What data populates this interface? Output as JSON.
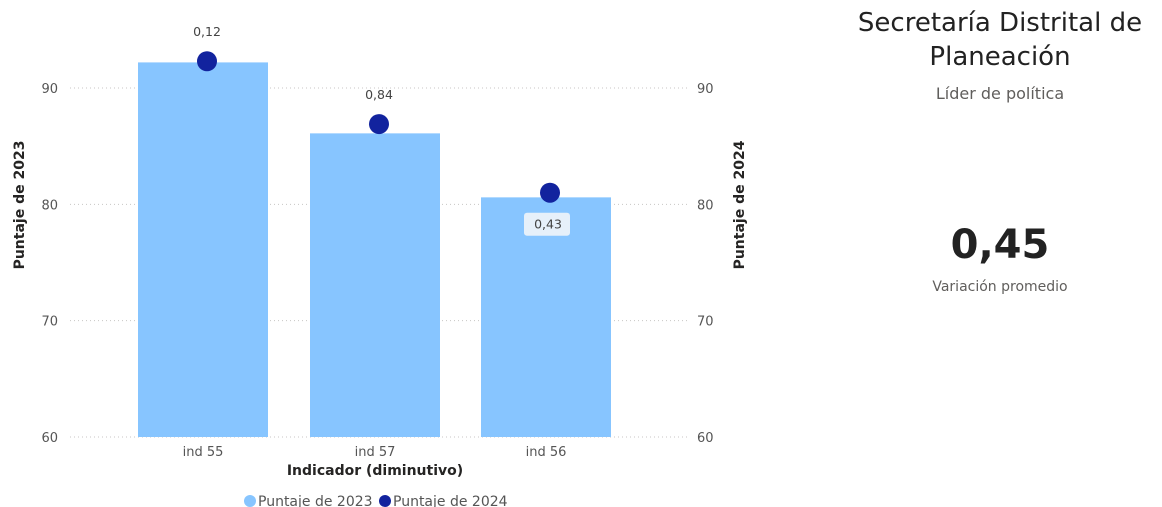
{
  "chart_data": {
    "type": "bar",
    "categories": [
      "ind 55",
      "ind 57",
      "ind 56"
    ],
    "series": [
      {
        "name": "Puntaje de 2023",
        "type": "bar",
        "axis": "left",
        "values": [
          92.2,
          86.1,
          80.6
        ]
      },
      {
        "name": "Puntaje de 2024",
        "type": "scatter",
        "axis": "right",
        "values": [
          92.3,
          86.9,
          81.0
        ]
      }
    ],
    "data_labels": [
      "0,12",
      "0,84",
      "0,43"
    ],
    "xlabel": "Indicador (diminutivo)",
    "ylabel_left": "Puntaje de 2023",
    "ylabel_right": "Puntaje de 2024",
    "ylim": [
      60,
      95
    ],
    "yticks": [
      60,
      70,
      80,
      90
    ],
    "ytick_labels": [
      "60",
      "70",
      "80",
      "90"
    ],
    "grid": true,
    "legend_position": "bottom",
    "colors": {
      "bar": "#87c5ff",
      "dot": "#12239e"
    }
  },
  "card": {
    "title": "Secretaría Distrital de Planeación",
    "subtitle": "Líder de política",
    "kpi_value": "0,45",
    "kpi_label": "Variación promedio"
  }
}
